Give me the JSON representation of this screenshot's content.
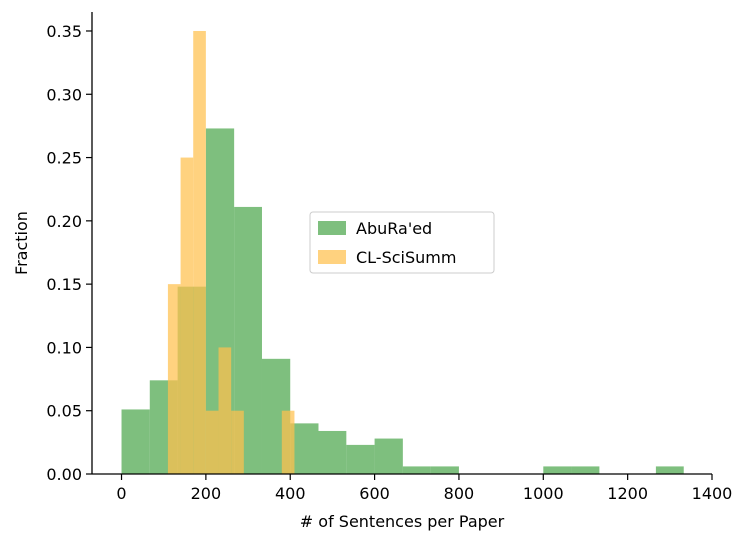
{
  "chart_data": {
    "type": "bar",
    "xlabel": "# of Sentences per Paper",
    "ylabel": "Fraction",
    "xlim": [
      -70,
      1400
    ],
    "ylim": [
      0,
      0.365
    ],
    "xticks": [
      0,
      200,
      400,
      600,
      800,
      1000,
      1200,
      1400
    ],
    "xtick_labels": [
      "0",
      "200",
      "400",
      "600",
      "800",
      "1000",
      "1200",
      "1400"
    ],
    "yticks": [
      0.0,
      0.05,
      0.1,
      0.15,
      0.2,
      0.25,
      0.3,
      0.35
    ],
    "ytick_labels": [
      "0.00",
      "0.05",
      "0.10",
      "0.15",
      "0.20",
      "0.25",
      "0.30",
      "0.35"
    ],
    "grid": false,
    "legend_position": "center-right",
    "series": [
      {
        "name": "AbuRa'ed",
        "color": "#4ca64c",
        "alpha": 0.72,
        "bins": [
          {
            "x0": 0,
            "x1": 67,
            "value": 0.051
          },
          {
            "x0": 67,
            "x1": 133,
            "value": 0.074
          },
          {
            "x0": 133,
            "x1": 200,
            "value": 0.148
          },
          {
            "x0": 200,
            "x1": 267,
            "value": 0.273
          },
          {
            "x0": 267,
            "x1": 333,
            "value": 0.211
          },
          {
            "x0": 333,
            "x1": 400,
            "value": 0.091
          },
          {
            "x0": 400,
            "x1": 467,
            "value": 0.04
          },
          {
            "x0": 467,
            "x1": 533,
            "value": 0.034
          },
          {
            "x0": 533,
            "x1": 600,
            "value": 0.023
          },
          {
            "x0": 600,
            "x1": 667,
            "value": 0.028
          },
          {
            "x0": 667,
            "x1": 733,
            "value": 0.006
          },
          {
            "x0": 733,
            "x1": 800,
            "value": 0.006
          },
          {
            "x0": 1000,
            "x1": 1067,
            "value": 0.006
          },
          {
            "x0": 1067,
            "x1": 1133,
            "value": 0.006
          },
          {
            "x0": 1267,
            "x1": 1333,
            "value": 0.006
          }
        ]
      },
      {
        "name": "CL-SciSumm",
        "color": "#ffc04d",
        "alpha": 0.72,
        "bins": [
          {
            "x0": 110,
            "x1": 140,
            "value": 0.15
          },
          {
            "x0": 140,
            "x1": 170,
            "value": 0.25
          },
          {
            "x0": 170,
            "x1": 200,
            "value": 0.35
          },
          {
            "x0": 200,
            "x1": 230,
            "value": 0.05
          },
          {
            "x0": 230,
            "x1": 260,
            "value": 0.1
          },
          {
            "x0": 260,
            "x1": 290,
            "value": 0.05
          },
          {
            "x0": 290,
            "x1": 320,
            "value": 0.0
          },
          {
            "x0": 320,
            "x1": 350,
            "value": 0.0
          },
          {
            "x0": 350,
            "x1": 380,
            "value": 0.0
          },
          {
            "x0": 380,
            "x1": 410,
            "value": 0.05
          }
        ]
      }
    ]
  }
}
